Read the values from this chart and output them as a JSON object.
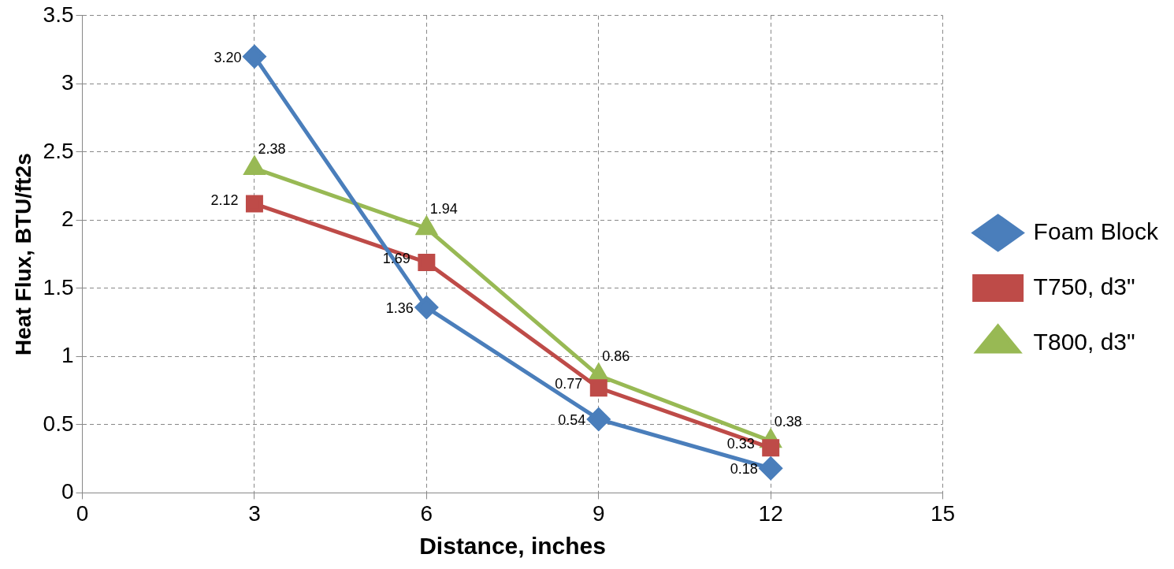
{
  "chart_data": {
    "type": "line",
    "xlabel": "Distance, inches",
    "ylabel": "Heat Flux, BTU/ft2s",
    "x": [
      3,
      6,
      9,
      12
    ],
    "xlim": [
      0,
      15
    ],
    "xticks": [
      0,
      3,
      6,
      9,
      12,
      15
    ],
    "ylim": [
      0,
      3.5
    ],
    "yticks": [
      0,
      0.5,
      1,
      1.5,
      2,
      2.5,
      3,
      3.5
    ],
    "series": [
      {
        "name": "Foam Block",
        "color": "#4a7ebb",
        "marker": "diamond",
        "values": [
          3.2,
          1.36,
          0.54,
          0.18
        ],
        "value_labels": [
          "3.20",
          "1.36",
          "0.54",
          "0.18"
        ]
      },
      {
        "name": "T750, d3\"",
        "color": "#be4b48",
        "marker": "square",
        "values": [
          2.12,
          1.69,
          0.77,
          0.33
        ],
        "value_labels": [
          "2.12",
          "1.69",
          "0.77",
          "0.33"
        ]
      },
      {
        "name": "T800, d3\"",
        "color": "#98b954",
        "marker": "triangle",
        "values": [
          2.38,
          1.94,
          0.86,
          0.38
        ],
        "value_labels": [
          "2.38",
          "1.94",
          "0.86",
          "0.38"
        ]
      }
    ],
    "grid": true,
    "legend": "right",
    "line_style": "solid"
  }
}
